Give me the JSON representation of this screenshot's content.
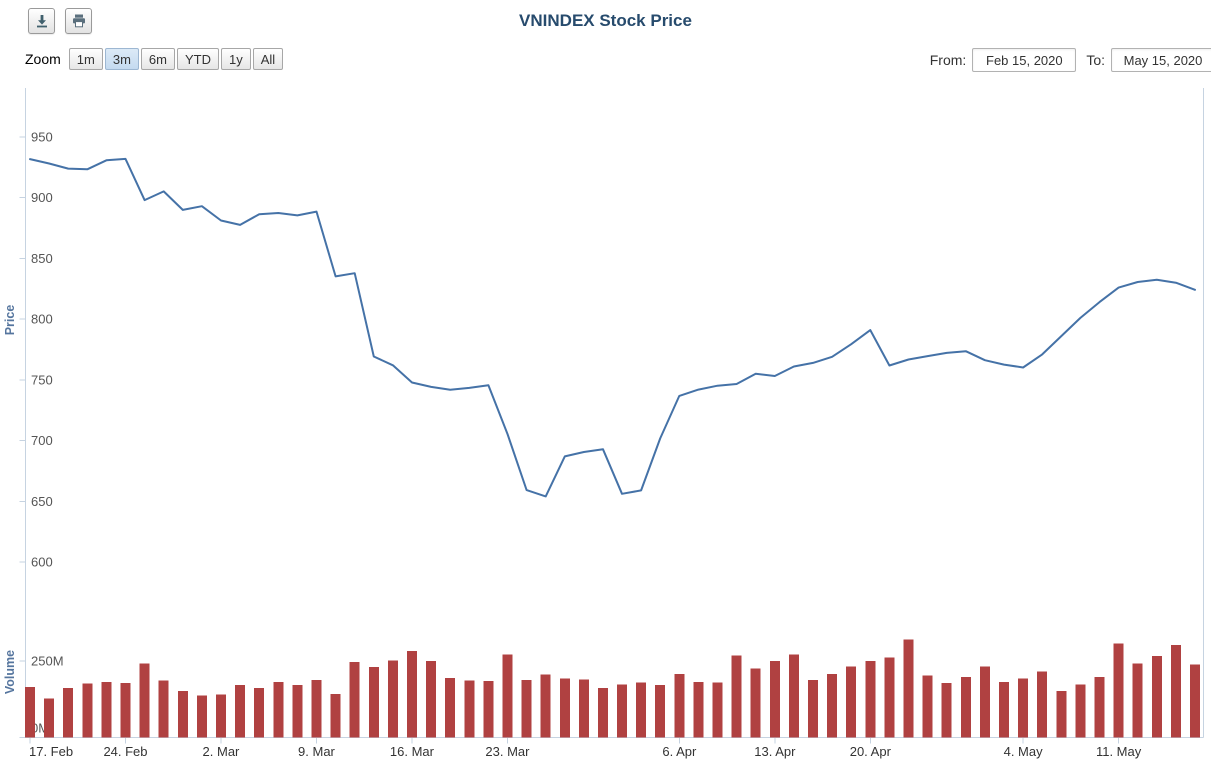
{
  "header": {
    "title": "VNINDEX Stock Price",
    "export_icons": [
      "download-icon",
      "print-icon"
    ]
  },
  "range_selector": {
    "zoom_label": "Zoom",
    "buttons": [
      {
        "label": "1m",
        "selected": false
      },
      {
        "label": "3m",
        "selected": true
      },
      {
        "label": "6m",
        "selected": false
      },
      {
        "label": "YTD",
        "selected": false
      },
      {
        "label": "1y",
        "selected": false
      },
      {
        "label": "All",
        "selected": false
      }
    ],
    "from_label": "From:",
    "from_value": "Feb 15, 2020",
    "to_label": "To:",
    "to_value": "May 15, 2020"
  },
  "colors": {
    "price_line": "#4572a7",
    "volume_bar": "#b04141",
    "title": "#274b6d",
    "axis_labels": "#555555",
    "x_labels": "#333333",
    "axis_title": "#55759e",
    "axis_line": "#c6d3e1",
    "selected_zoom_bg": "#cfe1f4"
  },
  "chart_data": {
    "type": "line",
    "title": "VNINDEX Stock Price",
    "grid": false,
    "legend": false,
    "xrange": [
      "Feb 15, 2020",
      "May 15, 2020"
    ],
    "x": [
      "2020-02-17",
      "2020-02-18",
      "2020-02-19",
      "2020-02-20",
      "2020-02-21",
      "2020-02-24",
      "2020-02-25",
      "2020-02-26",
      "2020-02-27",
      "2020-02-28",
      "2020-03-02",
      "2020-03-03",
      "2020-03-04",
      "2020-03-05",
      "2020-03-06",
      "2020-03-09",
      "2020-03-10",
      "2020-03-11",
      "2020-03-12",
      "2020-03-13",
      "2020-03-16",
      "2020-03-17",
      "2020-03-18",
      "2020-03-19",
      "2020-03-20",
      "2020-03-23",
      "2020-03-24",
      "2020-03-25",
      "2020-03-26",
      "2020-03-27",
      "2020-03-30",
      "2020-03-31",
      "2020-04-01",
      "2020-04-03",
      "2020-04-06",
      "2020-04-07",
      "2020-04-08",
      "2020-04-09",
      "2020-04-10",
      "2020-04-13",
      "2020-04-14",
      "2020-04-15",
      "2020-04-16",
      "2020-04-17",
      "2020-04-20",
      "2020-04-21",
      "2020-04-22",
      "2020-04-23",
      "2020-04-24",
      "2020-04-27",
      "2020-04-28",
      "2020-04-29",
      "2020-05-04",
      "2020-05-05",
      "2020-05-06",
      "2020-05-07",
      "2020-05-08",
      "2020-05-11",
      "2020-05-12",
      "2020-05-13",
      "2020-05-14",
      "2020-05-15"
    ],
    "xticks": [
      {
        "i": 0,
        "label": "17. Feb"
      },
      {
        "i": 5,
        "label": "24. Feb"
      },
      {
        "i": 10,
        "label": "2. Mar"
      },
      {
        "i": 15,
        "label": "9. Mar"
      },
      {
        "i": 20,
        "label": "16. Mar"
      },
      {
        "i": 25,
        "label": "23. Mar"
      },
      {
        "i": 34,
        "label": "6. Apr"
      },
      {
        "i": 39,
        "label": "13. Apr"
      },
      {
        "i": 44,
        "label": "20. Apr"
      },
      {
        "i": 52,
        "label": "4. May"
      },
      {
        "i": 57,
        "label": "11. May"
      }
    ],
    "panes": [
      {
        "type": "line",
        "ylabel": "Price",
        "ylim": [
          600,
          950
        ],
        "yticks": [
          950,
          900,
          850,
          800,
          750,
          700,
          650,
          600
        ],
        "series": [
          {
            "name": "VNINDEX",
            "color": "#4572a7",
            "values": [
              931.8,
              928.2,
              924.0,
              923.4,
              930.8,
              932.0,
              898.0,
              905.2,
              890.0,
              893.0,
              881.2,
              877.6,
              886.4,
              887.4,
              885.4,
              888.6,
              835.2,
              837.8,
              769.2,
              762.0,
              747.8,
              744.2,
              741.8,
              743.4,
              745.6,
              705.4,
              659.2,
              654.0,
              687.0,
              690.6,
              692.8,
              656.2,
              659.0,
              701.8,
              736.8,
              742.0,
              745.2,
              746.6,
              755.0,
              753.2,
              761.0,
              764.0,
              769.0,
              779.4,
              791.0,
              761.8,
              766.8,
              769.6,
              772.2,
              773.6,
              766.2,
              762.6,
              760.2,
              771.0,
              786.0,
              801.0,
              814.0,
              826.0,
              830.6,
              832.4,
              830.0,
              824.2
            ]
          }
        ]
      },
      {
        "type": "bar",
        "ylabel": "Volume",
        "ylim": [
          0,
          330
        ],
        "yticks": [
          {
            "v": 0,
            "label": "0M"
          },
          {
            "v": 250,
            "label": "250M"
          }
        ],
        "unit": "millions of shares",
        "series": [
          {
            "name": "Volume",
            "color": "#b04141",
            "values": [
              165,
              128,
              162,
              176,
              182,
              178,
              242,
              186,
              152,
              138,
              140,
              172,
              162,
              182,
              172,
              188,
              142,
              246,
              230,
              252,
              282,
              250,
              194,
              186,
              184,
              272,
              188,
              206,
              192,
              190,
              162,
              174,
              180,
              172,
              208,
              182,
              180,
              268,
              226,
              250,
              272,
              188,
              208,
              232,
              250,
              262,
              320,
              202,
              178,
              198,
              232,
              182,
              192,
              216,
              152,
              174,
              198,
              308,
              242,
              266,
              302,
              238
            ]
          }
        ]
      }
    ]
  }
}
